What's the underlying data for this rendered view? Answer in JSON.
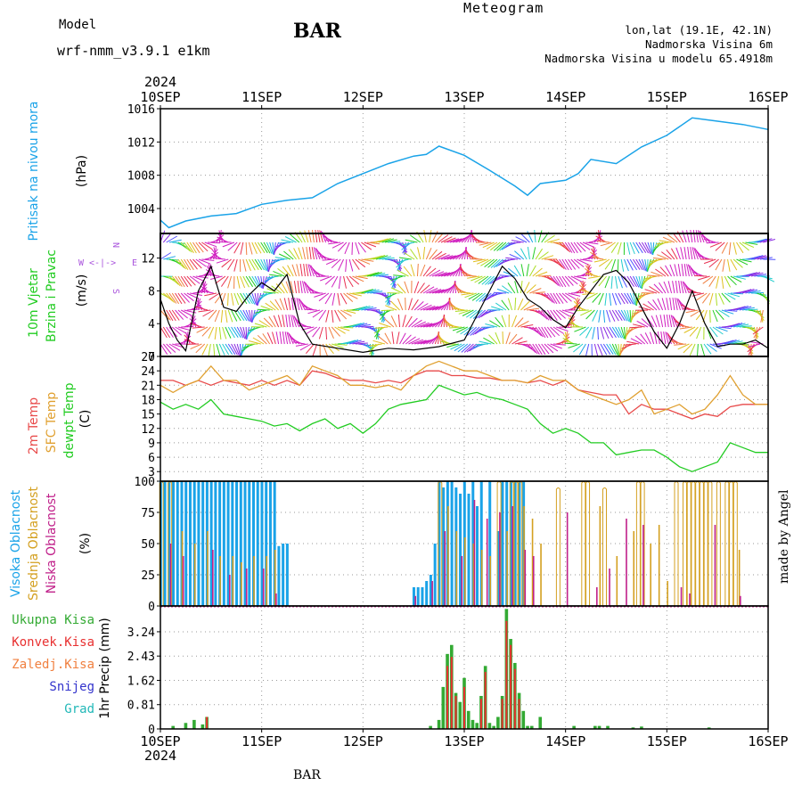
{
  "header": {
    "model_label": "Model",
    "model_name": "wrf-nmm_v3.9.1 e1km",
    "title": "Meteogram",
    "station": "BAR",
    "lonlat": "lon,lat (19.1E, 42.1N)",
    "elevation": "Nadmorska Visina 6m",
    "model_elevation": "Nadmorska Visina u modelu 65.4918m",
    "bottom_station": "BAR",
    "credit": "made by Angel"
  },
  "colors": {
    "pressure": "#1aa3e8",
    "t2m": "#e84a4a",
    "sfc": "#e0a030",
    "dew": "#22cc22",
    "cloud_high": "#1aa3e8",
    "cloud_mid": "#d4a020",
    "cloud_low": "#c0208a",
    "precip_total": "#33aa33",
    "precip_conv": "#e83030",
    "precip_frz": "#f08040",
    "snow": "#3333cc",
    "hail": "#22b8b8",
    "label_purple": "#aa55dd"
  },
  "chart_data": [
    {
      "type": "line",
      "panel": "pressure",
      "title": "",
      "ylabel": [
        "Pritisak na nivou mora",
        "(hPa)"
      ],
      "x_tick_labels": [
        "10SEP",
        "11SEP",
        "12SEP",
        "13SEP",
        "14SEP",
        "15SEP",
        "16SEP"
      ],
      "x_year": "2024",
      "ylim": [
        1001,
        1016
      ],
      "y_ticks": [
        "1004",
        "1008",
        "1012",
        "1016"
      ],
      "grid": true,
      "x_hours": [
        0,
        2,
        6,
        12,
        18,
        24,
        30,
        36,
        42,
        48,
        54,
        60,
        63,
        66,
        72,
        78,
        84,
        87,
        90,
        96,
        99,
        102,
        108,
        114,
        120,
        126,
        132,
        138,
        144
      ],
      "series": [
        {
          "values": [
            1002.6,
            1001.7,
            1002.5,
            1003.1,
            1003.4,
            1004.5,
            1005.0,
            1005.3,
            1007.0,
            1008.2,
            1009.4,
            1010.3,
            1010.5,
            1011.5,
            1010.4,
            1008.6,
            1006.7,
            1005.6,
            1007.0,
            1007.4,
            1008.2,
            1009.9,
            1009.4,
            1011.4,
            1012.8,
            1014.9,
            1014.5,
            1014.1,
            1013.5
          ]
        }
      ]
    },
    {
      "type": "line",
      "panel": "wind",
      "title": "",
      "ylabel": [
        "10m Vjetar",
        "Brzina i Pravac",
        "(m/s)"
      ],
      "ylim": [
        0,
        15
      ],
      "y_ticks": [
        "0",
        "4",
        "8",
        "12"
      ],
      "compass": {
        "n": "N",
        "s": "S",
        "e": "E",
        "w": "W"
      },
      "grid": false,
      "x_hours": [
        0,
        2,
        4,
        6,
        9,
        12,
        15,
        18,
        21,
        24,
        27,
        30,
        33,
        36,
        42,
        48,
        54,
        60,
        66,
        72,
        75,
        78,
        81,
        84,
        87,
        90,
        93,
        96,
        99,
        102,
        105,
        108,
        111,
        114,
        117,
        120,
        123,
        126,
        129,
        132,
        135,
        138,
        141,
        144
      ],
      "series": [
        {
          "name": "speed",
          "values": [
            7.0,
            4.0,
            2.0,
            0.7,
            8.0,
            11.0,
            6.0,
            5.5,
            7.5,
            9.0,
            8.0,
            10.0,
            4.0,
            1.5,
            1.0,
            0.5,
            1.0,
            0.8,
            1.2,
            2.0,
            5.0,
            8.0,
            11.0,
            9.5,
            7.0,
            6.0,
            4.5,
            3.5,
            6.0,
            8.0,
            10.0,
            10.5,
            9.0,
            6.0,
            3.0,
            1.0,
            4.0,
            8.0,
            4.0,
            1.2,
            1.5,
            1.5,
            2.0,
            1.0
          ]
        }
      ]
    },
    {
      "type": "line",
      "panel": "temperature",
      "title": "",
      "ylabel": [
        "2m Temp",
        "SFC Temp",
        "dewpt Temp",
        "(C)"
      ],
      "ylim": [
        1,
        27
      ],
      "y_ticks": [
        "3",
        "6",
        "9",
        "12",
        "15",
        "18",
        "21",
        "24",
        "27"
      ],
      "grid": true,
      "x_hours": [
        0,
        3,
        6,
        9,
        12,
        15,
        18,
        21,
        24,
        27,
        30,
        33,
        36,
        39,
        42,
        45,
        48,
        51,
        54,
        57,
        60,
        63,
        66,
        69,
        72,
        75,
        78,
        81,
        84,
        87,
        90,
        93,
        96,
        99,
        102,
        105,
        108,
        111,
        114,
        117,
        120,
        123,
        126,
        129,
        132,
        135,
        138,
        141,
        144
      ],
      "series": [
        {
          "name": "2m Temp",
          "values": [
            22,
            22,
            21,
            22,
            21,
            22,
            21.5,
            21,
            22,
            21,
            22,
            21,
            24,
            23.5,
            22.5,
            22,
            22,
            21.5,
            22,
            21.5,
            23,
            24,
            24,
            23,
            23,
            22.5,
            22.5,
            22,
            22,
            21.5,
            22,
            21,
            22,
            20,
            19.5,
            19,
            19,
            15,
            17,
            16,
            16,
            15,
            14,
            15,
            14.5,
            16.5,
            17,
            17,
            17
          ]
        },
        {
          "name": "SFC Temp",
          "values": [
            21,
            19.5,
            21,
            22,
            25,
            22,
            22,
            20,
            21,
            22,
            23,
            21,
            25,
            24,
            23,
            21,
            21,
            20.5,
            21,
            20,
            23,
            25,
            26,
            25,
            24,
            24,
            23,
            22,
            22,
            21.5,
            23,
            22,
            22,
            20,
            19,
            18,
            17,
            18,
            20,
            15,
            16,
            17,
            15,
            16,
            19,
            23,
            19,
            17,
            17
          ]
        },
        {
          "name": "dewpt Temp",
          "values": [
            17.5,
            16,
            17,
            16,
            18,
            15,
            14.5,
            14,
            13.5,
            12.5,
            13,
            11.5,
            13,
            14,
            12,
            13,
            11,
            13,
            16,
            17,
            17.5,
            18,
            21,
            20,
            19,
            19.5,
            18.5,
            18,
            17,
            16,
            13,
            11,
            12,
            11,
            9,
            9,
            6.5,
            7,
            7.5,
            7.5,
            6,
            4,
            3,
            4,
            5,
            9,
            8,
            7,
            7
          ]
        }
      ]
    },
    {
      "type": "bar",
      "panel": "clouds",
      "title": "",
      "ylabel": [
        "Visoka Oblacnost",
        "Srednja Oblacnost",
        "Niska Oblacnost",
        "(%)"
      ],
      "ylim": [
        0,
        100
      ],
      "y_ticks": [
        "0",
        "25",
        "50",
        "75",
        "100"
      ],
      "grid": true,
      "series": [
        {
          "name": "Visoka Oblacnost",
          "x_hours": [
            0,
            1,
            2,
            3,
            4,
            5,
            6,
            7,
            8,
            9,
            10,
            11,
            12,
            13,
            14,
            15,
            16,
            17,
            18,
            19,
            20,
            21,
            22,
            23,
            24,
            25,
            26,
            27,
            28,
            29,
            30,
            60,
            61,
            62,
            63,
            64,
            65,
            66,
            67,
            68,
            69,
            70,
            71,
            72,
            73,
            74,
            75,
            76,
            78,
            80,
            81,
            82,
            83,
            84,
            85,
            86,
            87,
            88
          ],
          "values": [
            100,
            100,
            100,
            100,
            100,
            100,
            100,
            100,
            100,
            100,
            100,
            100,
            100,
            100,
            100,
            100,
            100,
            100,
            100,
            100,
            100,
            100,
            100,
            100,
            100,
            100,
            100,
            100,
            48,
            50,
            50,
            15,
            15,
            15,
            20,
            25,
            50,
            100,
            95,
            100,
            100,
            95,
            90,
            100,
            90,
            100,
            80,
            100,
            100,
            60,
            100,
            100,
            100,
            100,
            100,
            100,
            0,
            0
          ]
        },
        {
          "name": "Srednja Oblacnost",
          "x_hours": [
            0,
            2,
            5,
            8,
            11,
            14,
            17,
            19,
            22,
            25,
            27,
            66,
            68,
            70,
            72,
            74,
            76,
            78,
            80,
            82,
            83,
            84,
            85,
            86,
            88,
            90,
            94,
            100,
            101,
            104,
            105,
            108,
            112,
            113,
            114,
            116,
            118,
            120,
            122,
            124,
            125,
            126,
            127,
            128,
            129,
            130,
            132,
            134,
            135,
            136,
            137
          ],
          "values": [
            100,
            100,
            60,
            50,
            60,
            40,
            40,
            35,
            40,
            40,
            45,
            100,
            80,
            60,
            55,
            50,
            45,
            40,
            100,
            60,
            100,
            100,
            100,
            80,
            70,
            50,
            95,
            100,
            100,
            80,
            95,
            40,
            60,
            100,
            100,
            50,
            65,
            20,
            100,
            100,
            100,
            100,
            100,
            100,
            100,
            100,
            100,
            100,
            100,
            100,
            45
          ]
        },
        {
          "name": "Niska Oblacnost",
          "x_hours": [
            2,
            5,
            12,
            16,
            20,
            24,
            27,
            60,
            64,
            67,
            71,
            74,
            77,
            80,
            83,
            86,
            88,
            96,
            103,
            106,
            110,
            114,
            123,
            125,
            131,
            137
          ],
          "values": [
            50,
            40,
            45,
            25,
            30,
            30,
            10,
            8,
            20,
            60,
            40,
            85,
            70,
            75,
            80,
            45,
            40,
            75,
            15,
            30,
            70,
            65,
            15,
            10,
            65,
            8
          ]
        }
      ]
    },
    {
      "type": "bar",
      "panel": "precip",
      "title": "",
      "ylabel": [
        "Ukupna Kisa",
        "Konvek.Kisa",
        "Zaledj.Kisa",
        "Snijeg",
        "Grad",
        "1hr Precip (mm)"
      ],
      "ylim": [
        0,
        4.1
      ],
      "y_ticks": [
        "0",
        "0.81",
        "1.62",
        "2.43",
        "3.24"
      ],
      "grid": true,
      "series": [
        {
          "name": "Ukupna Kisa",
          "x_hours": [
            3,
            6,
            8,
            10,
            11,
            64,
            66,
            67,
            68,
            69,
            70,
            71,
            72,
            73,
            74,
            75,
            76,
            77,
            78,
            79,
            80,
            81,
            82,
            83,
            84,
            85,
            86,
            87,
            88,
            90,
            98,
            103,
            104,
            106,
            112,
            114,
            130
          ],
          "values": [
            0.1,
            0.2,
            0.3,
            0.15,
            0.4,
            0.1,
            0.3,
            1.4,
            2.5,
            2.8,
            1.2,
            0.9,
            1.7,
            0.6,
            0.3,
            0.2,
            1.1,
            2.1,
            0.2,
            0.1,
            0.4,
            1.1,
            4.0,
            3.0,
            2.2,
            1.2,
            0.6,
            0.1,
            0.1,
            0.4,
            0.1,
            0.1,
            0.1,
            0.1,
            0.05,
            0.08,
            0.05
          ]
        },
        {
          "name": "Konvek.Kisa",
          "x_hours": [
            11,
            68,
            69,
            70,
            72,
            76,
            77,
            81,
            82,
            83,
            84,
            85
          ],
          "values": [
            0.4,
            2.1,
            2.4,
            1.1,
            1.4,
            1.0,
            1.9,
            1.0,
            3.6,
            2.8,
            2.0,
            1.0
          ]
        }
      ]
    }
  ]
}
